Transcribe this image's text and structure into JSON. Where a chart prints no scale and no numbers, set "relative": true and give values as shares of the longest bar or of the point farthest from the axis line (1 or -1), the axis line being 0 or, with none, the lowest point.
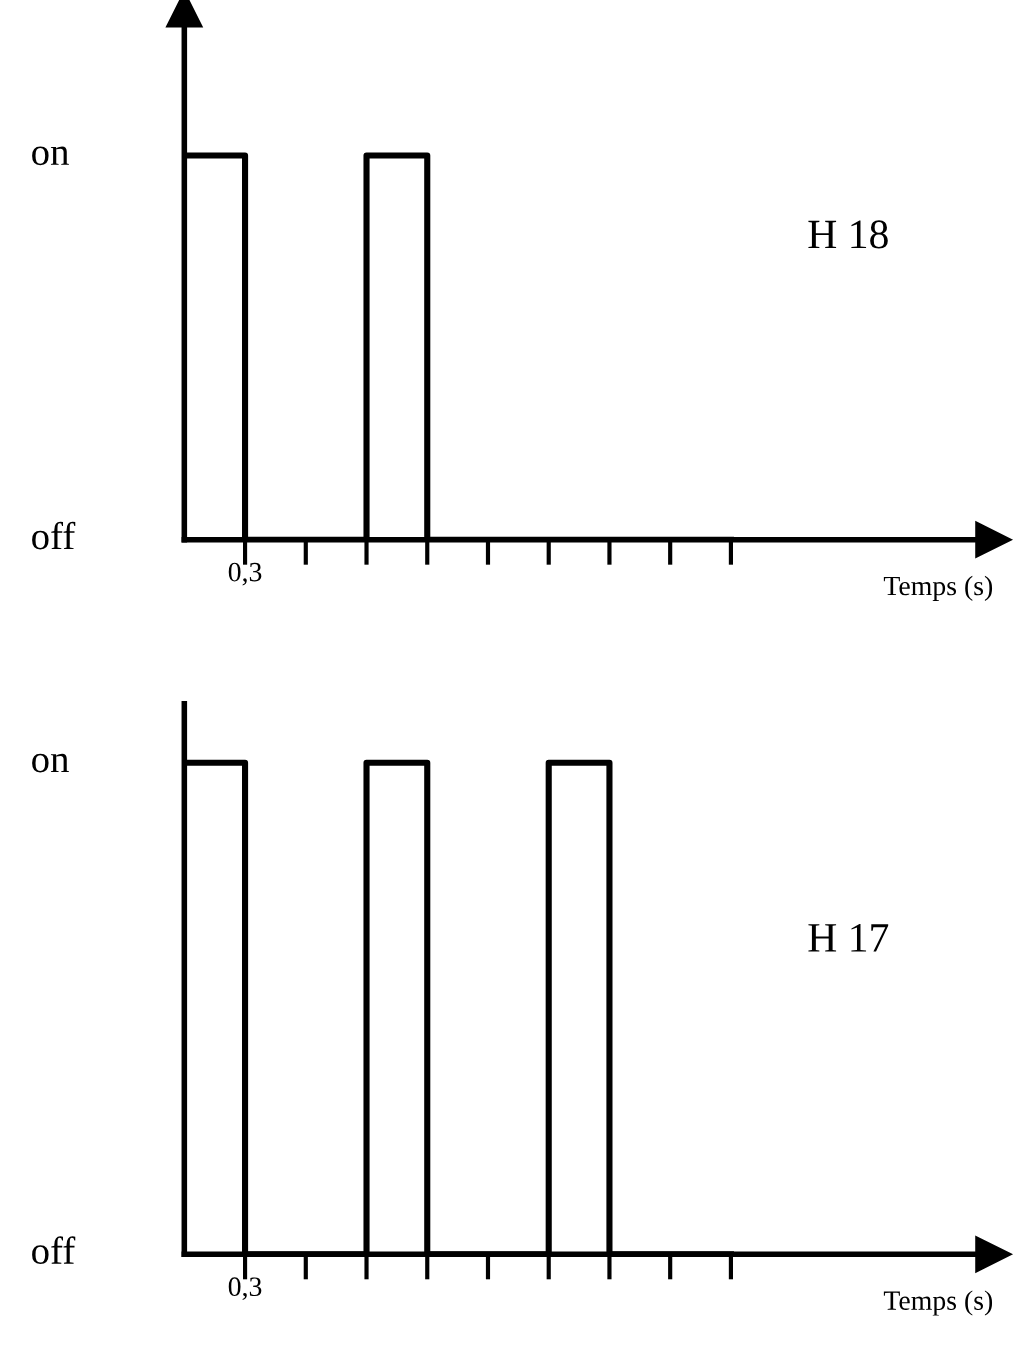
{
  "chart_data": [
    {
      "type": "step",
      "relative": true,
      "categories": [
        null,
        null,
        null,
        null,
        null,
        null,
        null,
        null,
        null,
        null
      ],
      "values": [
        1,
        0,
        0,
        1,
        0,
        0,
        0,
        0,
        0,
        0
      ],
      "color": "#000000",
      "xlabel": "Temps (s)",
      "annotations": [
        "on",
        "off",
        "0,3",
        "H 18"
      ],
      "grid": false,
      "legend": false
    },
    {
      "type": "step",
      "relative": true,
      "categories": [
        null,
        null,
        null,
        null,
        null,
        null,
        null,
        null,
        null,
        null
      ],
      "values": [
        1,
        0,
        0,
        1,
        0,
        0,
        1,
        0,
        0,
        0
      ],
      "color": "#000000",
      "xlabel": "Temps (s)",
      "annotations": [
        "on",
        "off",
        "0,3",
        "H 17"
      ],
      "grid": false,
      "legend": false
    }
  ]
}
